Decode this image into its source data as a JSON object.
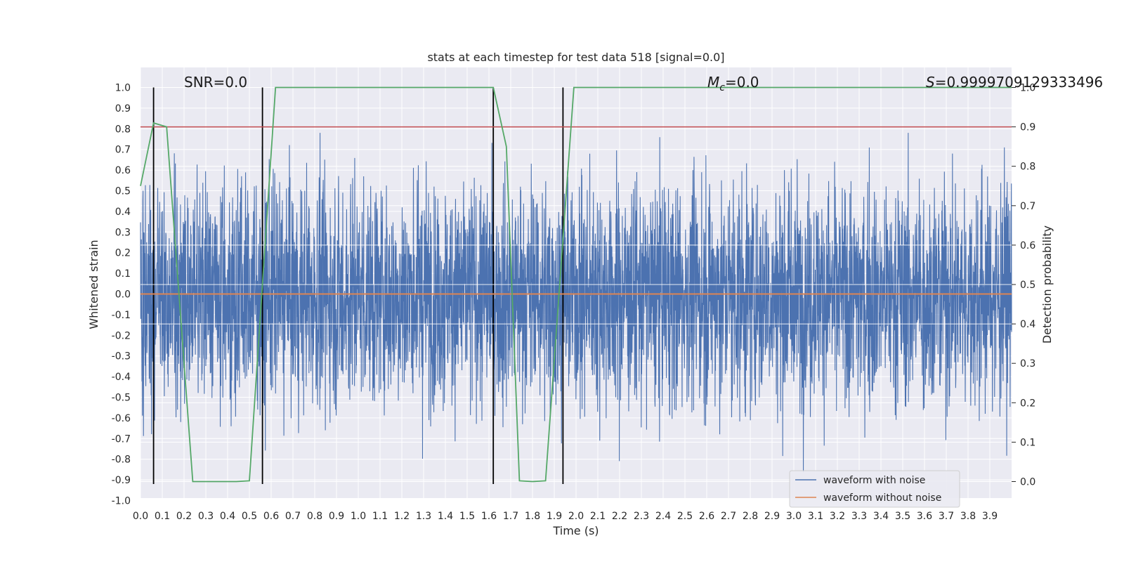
{
  "chart_data": {
    "type": "line",
    "title": "stats at each timestep for test data 518 [signal=0.0]",
    "xlabel": "Time (s)",
    "ylabel": "Whitened strain",
    "ylabel_right": "Detection probability",
    "xlim": [
      0.0,
      4.0
    ],
    "ylim": [
      -1.0,
      1.0
    ],
    "ylim_right": [
      0.0,
      1.0
    ],
    "x_ticks": [
      "0.0",
      "0.1",
      "0.2",
      "0.3",
      "0.4",
      "0.5",
      "0.6",
      "0.7",
      "0.8",
      "0.9",
      "1.0",
      "1.1",
      "1.2",
      "1.3",
      "1.4",
      "1.5",
      "1.6",
      "1.7",
      "1.8",
      "1.9",
      "2.0",
      "2.1",
      "2.2",
      "2.3",
      "2.4",
      "2.5",
      "2.6",
      "2.7",
      "2.8",
      "2.9",
      "3.0",
      "3.1",
      "3.2",
      "3.3",
      "3.4",
      "3.5",
      "3.6",
      "3.7",
      "3.8",
      "3.9"
    ],
    "y_ticks": [
      "1.0",
      "0.9",
      "0.8",
      "0.7",
      "0.6",
      "0.5",
      "0.4",
      "0.3",
      "0.2",
      "0.1",
      "0.0",
      "-0.1",
      "-0.2",
      "-0.3",
      "-0.4",
      "-0.5",
      "-0.6",
      "-0.7",
      "-0.8",
      "-0.9",
      "-1.0"
    ],
    "y_ticks_right": [
      "1.0",
      "0.9",
      "0.8",
      "0.7",
      "0.6",
      "0.5",
      "0.4",
      "0.3",
      "0.2",
      "0.1",
      "0.0"
    ],
    "annotations": {
      "snr": "SNR=0.0",
      "mc_symbol": "M",
      "mc_sub": "c",
      "mc_value": "=0.0",
      "s_symbol": "S",
      "s_value": "=0.9999709129333496"
    },
    "legend": {
      "position": "lower-right",
      "entries": [
        "waveform with noise",
        "waveform without noise"
      ]
    },
    "series": [
      {
        "name": "waveform with noise",
        "color": "#4c72b0",
        "axis": "left",
        "amplitude": 1.0,
        "noise_seed": 518
      },
      {
        "name": "waveform without noise",
        "color": "#dd8452",
        "axis": "left",
        "x": [
          0.0,
          4.0
        ],
        "y": [
          0.0,
          0.0
        ]
      },
      {
        "name": "detection probability",
        "color": "#55a868",
        "axis": "right",
        "x": [
          0.0,
          0.06,
          0.12,
          0.24,
          0.34,
          0.44,
          0.5,
          0.62,
          1.62,
          1.68,
          1.74,
          1.8,
          1.86,
          1.99,
          4.0
        ],
        "y": [
          0.75,
          0.91,
          0.9,
          0.0,
          0.0,
          0.0,
          0.002,
          1.0,
          1.0,
          0.85,
          0.002,
          0.0,
          0.002,
          1.0,
          1.0
        ]
      },
      {
        "name": "detection threshold",
        "color": "#c44e52",
        "axis": "right",
        "x": [
          0.0,
          4.0
        ],
        "y": [
          0.9,
          0.9
        ]
      }
    ],
    "vlines": {
      "color": "#000000",
      "x": [
        0.06,
        0.56,
        1.62,
        1.94
      ],
      "y_range": [
        -0.92,
        1.0
      ]
    }
  }
}
